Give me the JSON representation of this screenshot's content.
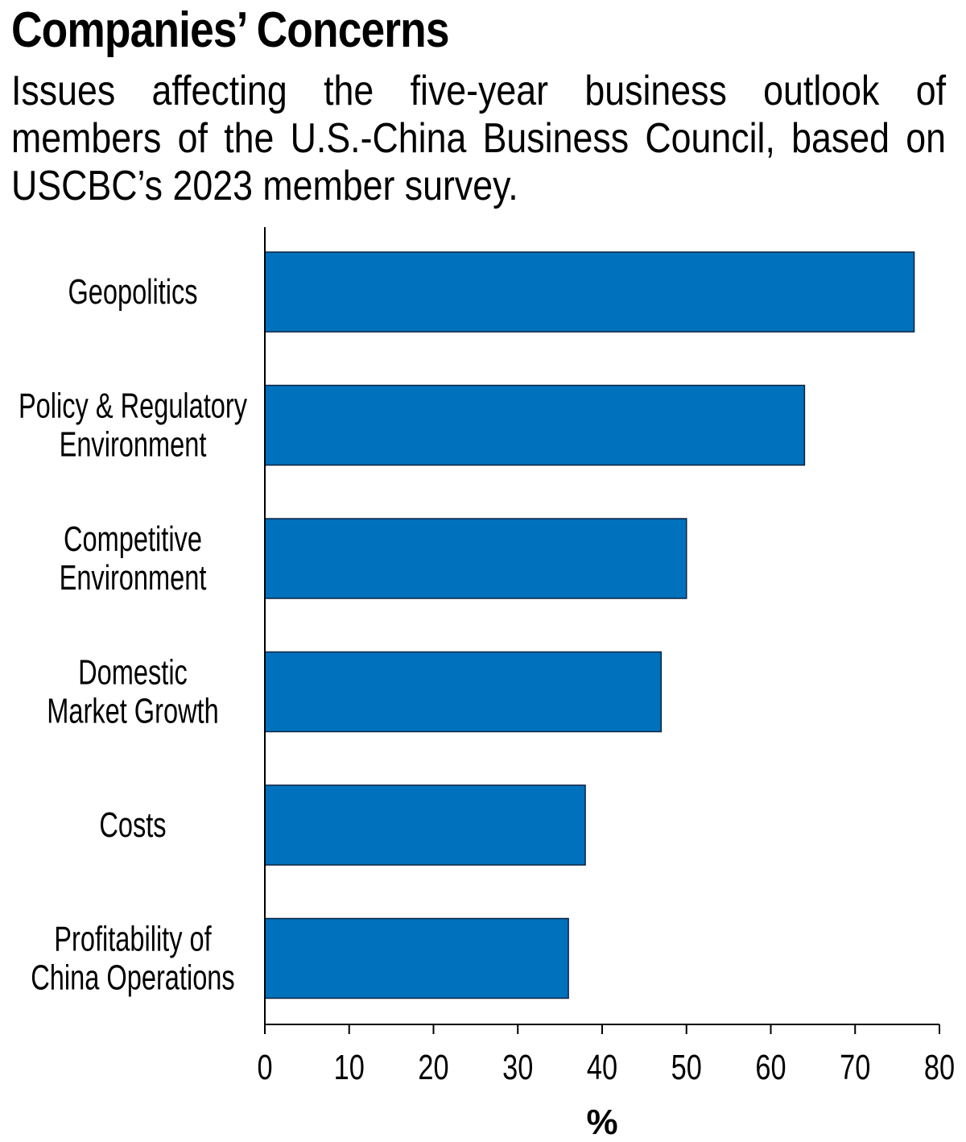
{
  "header": {
    "title": "Companies’ Concerns",
    "subtitle": "Issues affecting the five-year business outlook of members of the U.S.-China Business Council, based on USCBC’s 2023 member survey."
  },
  "chart_data": {
    "type": "bar",
    "orientation": "horizontal",
    "categories": [
      [
        "Geopolitics"
      ],
      [
        "Policy & Regulatory",
        "Environment"
      ],
      [
        "Competitive",
        "Environment"
      ],
      [
        "Domestic",
        "Market Growth"
      ],
      [
        "Costs"
      ],
      [
        "Profitability of",
        "China Operations"
      ]
    ],
    "values": [
      77,
      64,
      50,
      47,
      38,
      36
    ],
    "xlabel": "%",
    "xlim": [
      0,
      80
    ],
    "xticks": [
      "0",
      "10",
      "20",
      "30",
      "40",
      "50",
      "60",
      "70",
      "80"
    ],
    "grid": false,
    "bar_color": "#0071bc",
    "bar_stroke": "#0a2240"
  }
}
